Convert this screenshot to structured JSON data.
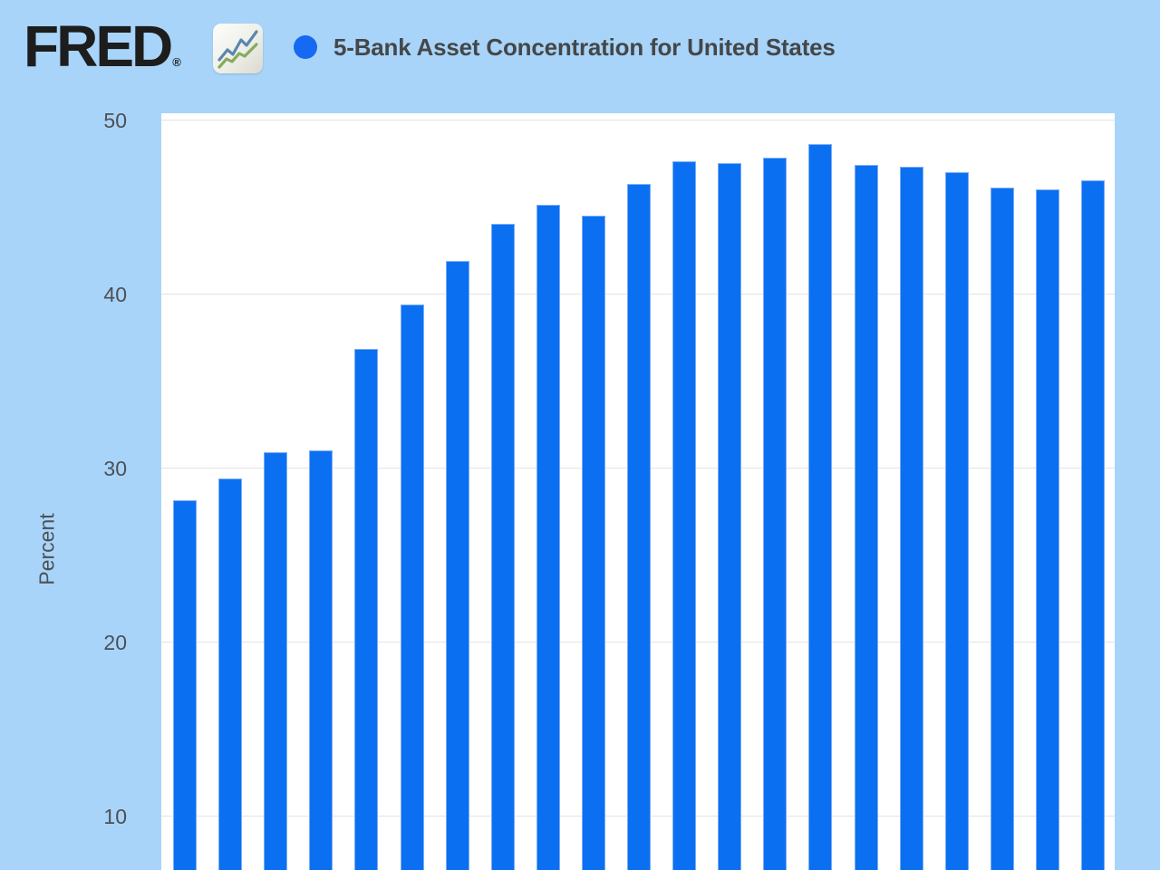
{
  "header": {
    "logo_text": "FRED",
    "logo_registered": "®",
    "title": "5-Bank Asset Concentration for United States"
  },
  "y_axis": {
    "label": "Percent",
    "tick_labels": [
      "50",
      "40",
      "30",
      "20",
      "10"
    ]
  },
  "icons": {
    "logo_chart_icon": "sparkline-chart-icon",
    "legend_dot": "series-color-dot"
  },
  "colors": {
    "page_background": "#a9d4f9",
    "bar_fill": "#0b6ff2",
    "bar_border": "#7aadf5",
    "legend_dot": "#1569f3",
    "gridline": "#e3e3e3",
    "title_text": "#444749",
    "axis_text": "#4c5054",
    "logo_text": "#1d1d1d",
    "plot_background": "#ffffff"
  },
  "chart_data": {
    "type": "bar",
    "title": "5-Bank Asset Concentration for United States",
    "ylabel": "Percent",
    "yticks": [
      50,
      40,
      30,
      20,
      10
    ],
    "ylim_visible": [
      6.7,
      50.3
    ],
    "grid": "horizontal",
    "legend_position": "header-dot-no-text",
    "x_labels_visible": false,
    "num_bars": 21,
    "values": [
      28.1,
      29.4,
      30.9,
      31.0,
      36.8,
      39.4,
      41.9,
      44.0,
      45.1,
      44.5,
      46.3,
      47.6,
      47.5,
      47.8,
      48.6,
      47.4,
      47.3,
      47.0,
      46.1,
      46.0,
      46.5
    ]
  }
}
